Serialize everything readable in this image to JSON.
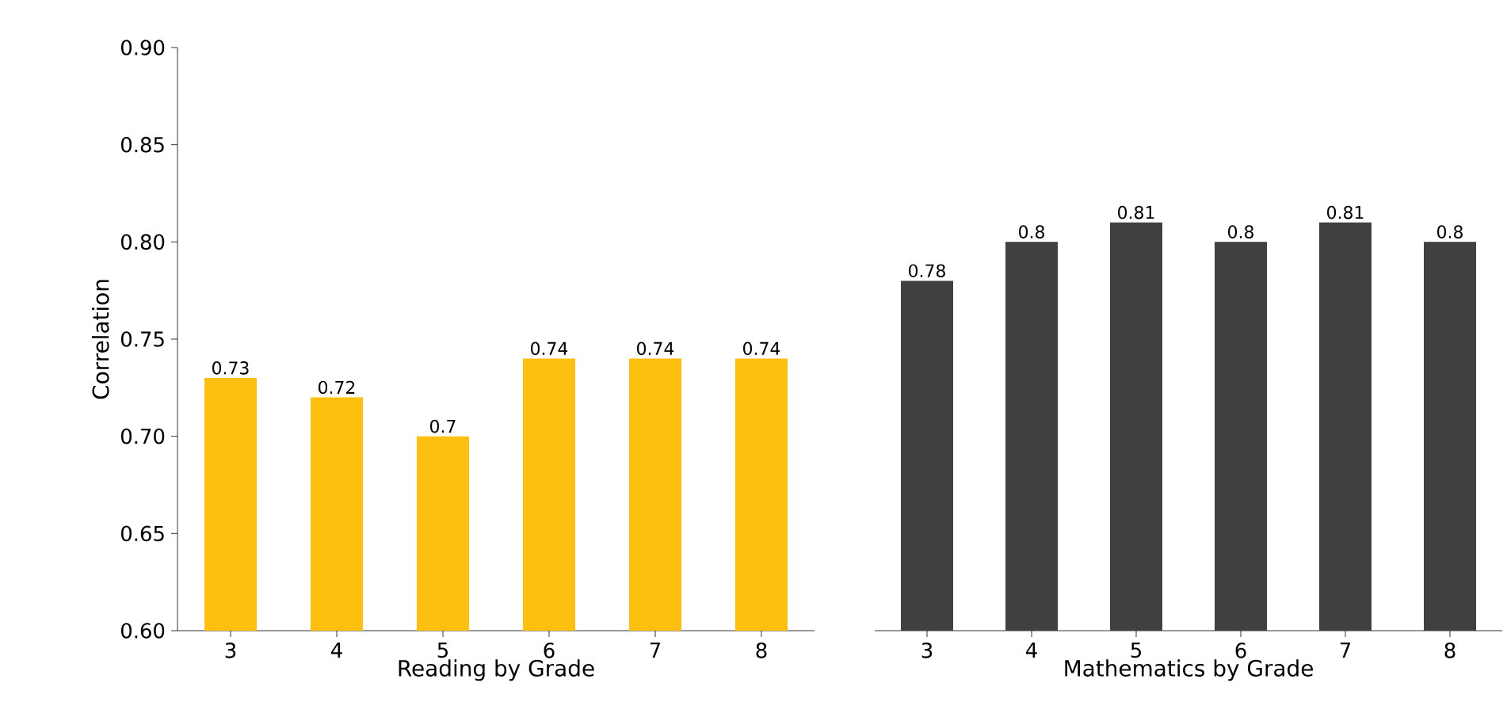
{
  "chart_data": [
    {
      "type": "bar",
      "xlabel": "Reading by Grade",
      "ylabel": "Correlation",
      "categories": [
        "3",
        "4",
        "5",
        "6",
        "7",
        "8"
      ],
      "values": [
        0.73,
        0.72,
        0.7,
        0.74,
        0.74,
        0.74
      ],
      "color": "#fdc010",
      "ylim": [
        0.6,
        0.9
      ],
      "yticks": [
        {
          "value": 0.6,
          "label": "0.60"
        },
        {
          "value": 0.65,
          "label": "0.65"
        },
        {
          "value": 0.7,
          "label": "0.70"
        },
        {
          "value": 0.75,
          "label": "0.75"
        },
        {
          "value": 0.8,
          "label": "0.80"
        },
        {
          "value": 0.85,
          "label": "0.85"
        },
        {
          "value": 0.9,
          "label": "0.90"
        }
      ],
      "data_labels": true
    },
    {
      "type": "bar",
      "xlabel": "Mathematics by Grade",
      "categories": [
        "3",
        "4",
        "5",
        "6",
        "7",
        "8"
      ],
      "values": [
        0.78,
        0.8,
        0.81,
        0.8,
        0.81,
        0.8
      ],
      "color": "#404040",
      "ylim": [
        0.6,
        0.9
      ],
      "data_labels": true,
      "tick_labels": "x"
    }
  ]
}
